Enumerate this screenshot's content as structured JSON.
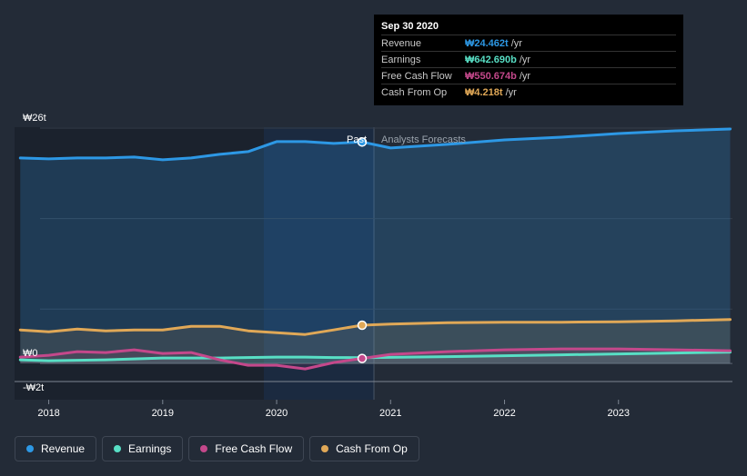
{
  "chart_data": {
    "type": "line",
    "x_axis": {
      "ticks": [
        "2018",
        "2019",
        "2020",
        "2021",
        "2022",
        "2023"
      ],
      "range": [
        2017.7,
        2024.0
      ]
    },
    "y_axis": {
      "range": [
        -2,
        26
      ],
      "labels": [
        {
          "value": 26,
          "text": "₩26t"
        },
        {
          "value": 0,
          "text": "₩0"
        },
        {
          "value": -2,
          "text": "-₩2t"
        }
      ]
    },
    "regions": {
      "past_label": "Past",
      "forecast_label": "Analysts Forecasts",
      "divider_x": 2020.75
    },
    "grid": true,
    "series": [
      {
        "name": "Revenue",
        "color": "#2d98e5",
        "x": [
          2017.75,
          2018.0,
          2018.25,
          2018.5,
          2018.75,
          2019.0,
          2019.25,
          2019.5,
          2019.75,
          2020.0,
          2020.25,
          2020.5,
          2020.75,
          2021.0,
          2021.5,
          2022.0,
          2022.5,
          2023.0,
          2023.5,
          2023.98
        ],
        "y": [
          22.7,
          22.6,
          22.7,
          22.7,
          22.8,
          22.5,
          22.7,
          23.1,
          23.4,
          24.5,
          24.5,
          24.3,
          24.46,
          23.8,
          24.2,
          24.7,
          25.0,
          25.4,
          25.7,
          25.9
        ]
      },
      {
        "name": "Earnings",
        "color": "#58dfc5",
        "x": [
          2017.75,
          2018.0,
          2018.5,
          2019.0,
          2019.5,
          2020.0,
          2020.25,
          2020.5,
          2020.75,
          2021.5,
          2022.5,
          2023.5,
          2023.98
        ],
        "y": [
          0.4,
          0.3,
          0.4,
          0.6,
          0.6,
          0.7,
          0.7,
          0.65,
          0.64,
          0.75,
          0.95,
          1.15,
          1.25
        ]
      },
      {
        "name": "Free Cash Flow",
        "color": "#c4488b",
        "x": [
          2017.75,
          2018.0,
          2018.25,
          2018.5,
          2018.75,
          2019.0,
          2019.25,
          2019.5,
          2019.75,
          2020.0,
          2020.25,
          2020.5,
          2020.75,
          2021.0,
          2021.5,
          2022.0,
          2022.5,
          2023.0,
          2023.5,
          2023.98
        ],
        "y": [
          0.7,
          0.9,
          1.3,
          1.2,
          1.5,
          1.1,
          1.2,
          0.4,
          -0.2,
          -0.2,
          -0.6,
          0.1,
          0.55,
          1.0,
          1.3,
          1.5,
          1.6,
          1.6,
          1.5,
          1.4
        ]
      },
      {
        "name": "Cash From Op",
        "color": "#e0a857",
        "x": [
          2017.75,
          2018.0,
          2018.25,
          2018.5,
          2018.75,
          2019.0,
          2019.25,
          2019.5,
          2019.75,
          2020.0,
          2020.25,
          2020.5,
          2020.75,
          2021.0,
          2021.5,
          2022.0,
          2022.5,
          2023.0,
          2023.5,
          2023.98
        ],
        "y": [
          3.7,
          3.5,
          3.8,
          3.6,
          3.7,
          3.7,
          4.1,
          4.1,
          3.6,
          3.4,
          3.2,
          3.7,
          4.22,
          4.35,
          4.5,
          4.55,
          4.55,
          4.6,
          4.7,
          4.85
        ]
      }
    ],
    "highlight": {
      "x": 2020.75,
      "markers": [
        "Revenue",
        "Free Cash Flow",
        "Cash From Op"
      ]
    }
  },
  "tooltip": {
    "date": "Sep 30 2020",
    "rows": [
      {
        "name": "Revenue",
        "value": "₩24.462t",
        "unit": "/yr",
        "color": "#2d98e5"
      },
      {
        "name": "Earnings",
        "value": "₩642.690b",
        "unit": "/yr",
        "color": "#58dfc5"
      },
      {
        "name": "Free Cash Flow",
        "value": "₩550.674b",
        "unit": "/yr",
        "color": "#c4488b"
      },
      {
        "name": "Cash From Op",
        "value": "₩4.218t",
        "unit": "/yr",
        "color": "#e0a857"
      }
    ]
  },
  "legend": [
    {
      "label": "Revenue",
      "color": "#2d98e5"
    },
    {
      "label": "Earnings",
      "color": "#58dfc5"
    },
    {
      "label": "Free Cash Flow",
      "color": "#c4488b"
    },
    {
      "label": "Cash From Op",
      "color": "#e0a857"
    }
  ]
}
